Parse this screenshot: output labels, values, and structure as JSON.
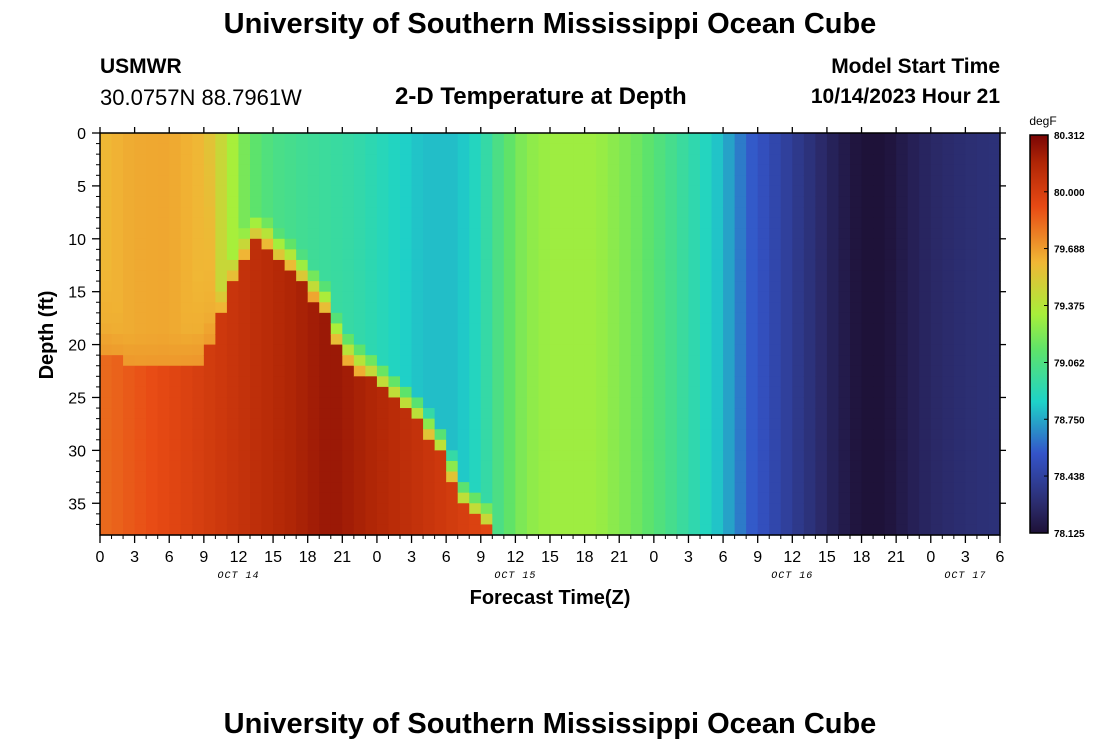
{
  "header": {
    "title": "University of Southern Mississippi Ocean Cube",
    "station": "USMWR",
    "coordinates": "30.0757N  88.7961W",
    "subtitle": "2-D Temperature at Depth",
    "model_start_label": "Model Start Time",
    "model_start_value": "10/14/2023 Hour 21"
  },
  "footer": {
    "title": "University of Southern Mississippi Ocean Cube"
  },
  "chart_data": {
    "type": "heatmap",
    "xlabel": "Forecast Time(Z)",
    "ylabel": "Depth (ft)",
    "x_tick_labels": [
      "0",
      "3",
      "6",
      "9",
      "12",
      "15",
      "18",
      "21",
      "0",
      "3",
      "6",
      "9",
      "12",
      "15",
      "18",
      "21",
      "0",
      "3",
      "6",
      "9",
      "12",
      "15",
      "18",
      "21",
      "0",
      "3",
      "6"
    ],
    "x_range_hours": [
      0,
      78
    ],
    "date_labels": [
      {
        "label": "OCT 14",
        "hour": 12
      },
      {
        "label": "OCT 15",
        "hour": 36
      },
      {
        "label": "OCT 16",
        "hour": 60
      },
      {
        "label": "OCT 17",
        "hour": 75
      }
    ],
    "y_ticks": [
      0,
      5,
      10,
      15,
      20,
      25,
      30,
      35
    ],
    "y_range": [
      0,
      38
    ],
    "y_inverted": true,
    "colorbar": {
      "unit": "degF",
      "min": 78.125,
      "max": 80.312,
      "tick_labels": [
        "80.312",
        "80.000",
        "79.688",
        "79.375",
        "79.062",
        "78.750",
        "78.438",
        "78.125"
      ]
    },
    "surface_temperature_by_hour": [
      [
        0,
        79.6
      ],
      [
        3,
        79.65
      ],
      [
        6,
        79.66
      ],
      [
        9,
        79.6
      ],
      [
        11,
        79.4
      ],
      [
        12,
        79.25
      ],
      [
        13,
        79.15
      ],
      [
        15,
        79.05
      ],
      [
        18,
        79.0
      ],
      [
        22,
        78.95
      ],
      [
        25,
        78.88
      ],
      [
        28,
        78.8
      ],
      [
        31,
        78.8
      ],
      [
        33,
        78.9
      ],
      [
        35,
        79.1
      ],
      [
        37,
        79.25
      ],
      [
        39,
        79.3
      ],
      [
        43,
        79.3
      ],
      [
        46,
        79.2
      ],
      [
        49,
        79.05
      ],
      [
        51,
        78.95
      ],
      [
        53,
        78.85
      ],
      [
        55,
        78.7
      ],
      [
        56,
        78.6
      ],
      [
        58,
        78.5
      ],
      [
        60,
        78.4
      ],
      [
        62,
        78.3
      ],
      [
        64,
        78.2
      ],
      [
        66,
        78.13
      ],
      [
        68,
        78.13
      ],
      [
        70,
        78.2
      ],
      [
        72,
        78.26
      ],
      [
        75,
        78.3
      ],
      [
        78,
        78.32
      ]
    ],
    "warm_layer_boundary_depth_by_hour": [
      [
        0,
        21
      ],
      [
        3,
        22
      ],
      [
        6,
        22
      ],
      [
        9,
        21.5
      ],
      [
        10,
        19
      ],
      [
        11,
        16
      ],
      [
        12,
        13
      ],
      [
        13,
        11
      ],
      [
        14,
        10
      ],
      [
        15,
        12
      ],
      [
        16,
        12.5
      ],
      [
        17,
        13.5
      ],
      [
        18,
        15
      ],
      [
        19.5,
        17
      ],
      [
        20,
        19
      ],
      [
        21,
        21
      ],
      [
        22,
        22.5
      ],
      [
        23,
        23
      ],
      [
        24,
        24
      ],
      [
        25,
        25
      ],
      [
        26,
        26
      ],
      [
        27,
        27
      ],
      [
        28,
        28
      ],
      [
        29,
        30
      ],
      [
        30,
        31
      ],
      [
        30.5,
        33
      ],
      [
        31,
        35
      ],
      [
        32,
        36
      ],
      [
        33,
        37
      ],
      [
        34,
        38
      ]
    ],
    "warm_layer_max": 80.312
  }
}
